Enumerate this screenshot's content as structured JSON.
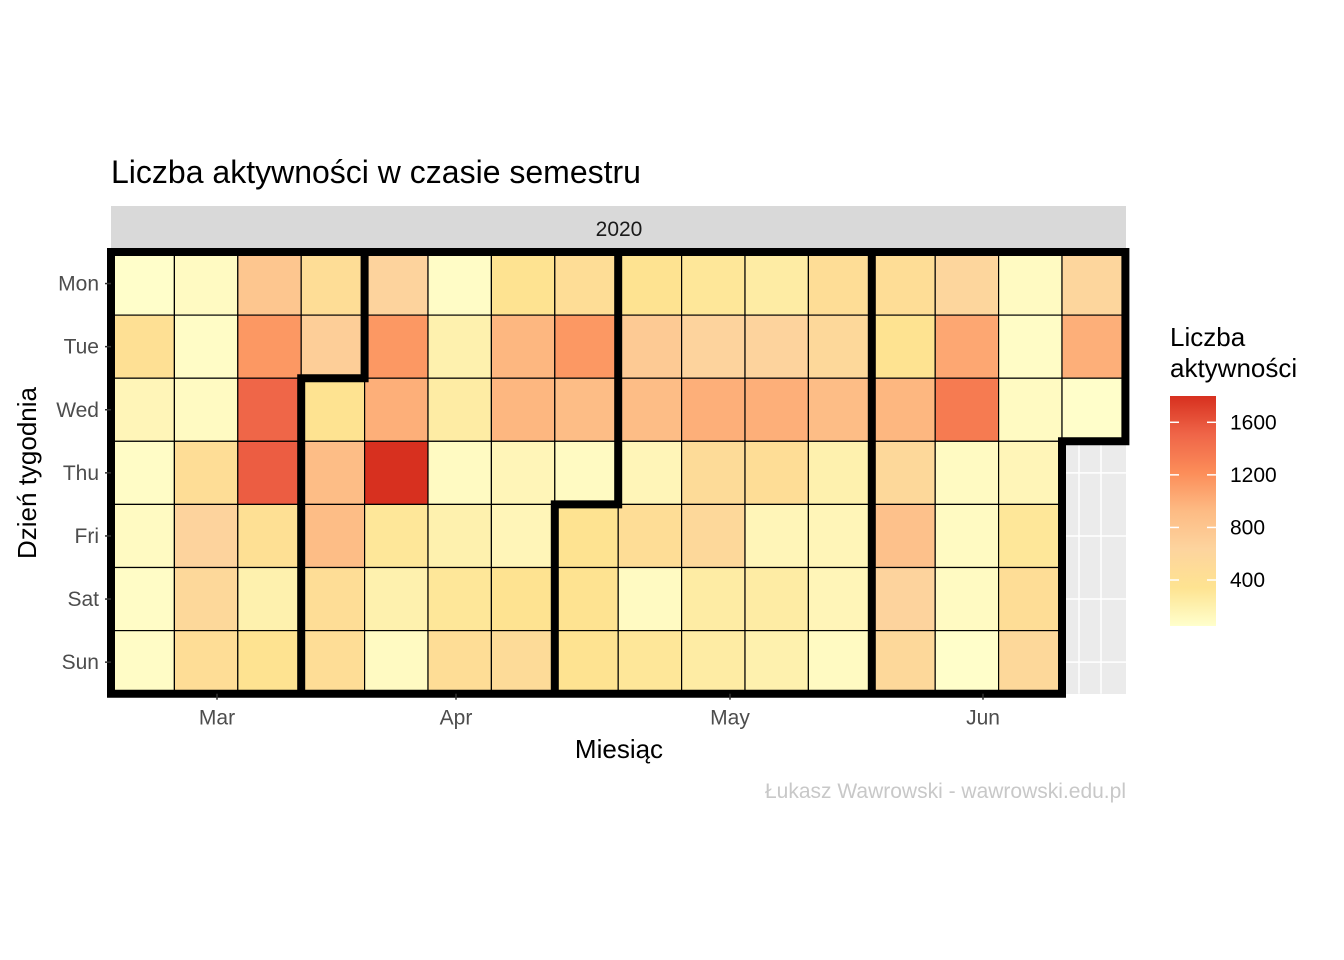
{
  "chart_data": {
    "type": "heatmap",
    "title": "Liczba aktywności w czasie semestru",
    "facet_label": "2020",
    "xlabel": "Miesiąc",
    "ylabel": "Dzień tygodnia",
    "x_ticks": [
      "Mar",
      "Apr",
      "May",
      "Jun"
    ],
    "y_categories": [
      "Mon",
      "Tue",
      "Wed",
      "Thu",
      "Fri",
      "Sat",
      "Sun"
    ],
    "legend": {
      "title": "Liczba aktywności",
      "ticks": [
        400,
        800,
        1200,
        1600
      ],
      "range": [
        50,
        1800
      ],
      "colors": [
        "#FFFFCC",
        "#FEE391",
        "#FDD49E",
        "#FDBB84",
        "#FC8D59",
        "#EF6548",
        "#D7301F"
      ],
      "position": "right"
    },
    "weeks": [
      [
        60,
        400,
        150,
        80,
        100,
        80,
        80
      ],
      [
        100,
        80,
        100,
        450,
        650,
        550,
        450
      ],
      [
        800,
        1150,
        1500,
        1550,
        400,
        200,
        350
      ],
      [
        450,
        700,
        350,
        900,
        900,
        450,
        450
      ],
      [
        650,
        1150,
        1000,
        1800,
        300,
        200,
        100
      ],
      [
        80,
        200,
        250,
        100,
        200,
        300,
        450
      ],
      [
        350,
        950,
        950,
        150,
        150,
        350,
        500
      ],
      [
        450,
        1150,
        900,
        100,
        350,
        350,
        350
      ],
      [
        350,
        750,
        900,
        150,
        450,
        100,
        300
      ],
      [
        300,
        650,
        1000,
        500,
        550,
        250,
        250
      ],
      [
        250,
        650,
        1000,
        450,
        150,
        250,
        200
      ],
      [
        450,
        550,
        900,
        200,
        150,
        150,
        100
      ],
      [
        450,
        350,
        950,
        550,
        850,
        650,
        550
      ],
      [
        600,
        1050,
        1350,
        100,
        100,
        100,
        60
      ],
      [
        100,
        80,
        100,
        150,
        300,
        450,
        550
      ],
      [
        600,
        1000,
        60,
        null,
        null,
        null,
        null
      ]
    ],
    "month_boundaries": [
      "Mar|Apr",
      "Apr|May",
      "May|Jun"
    ]
  },
  "caption": "Łukasz Wawrowski - wawrowski.edu.pl"
}
